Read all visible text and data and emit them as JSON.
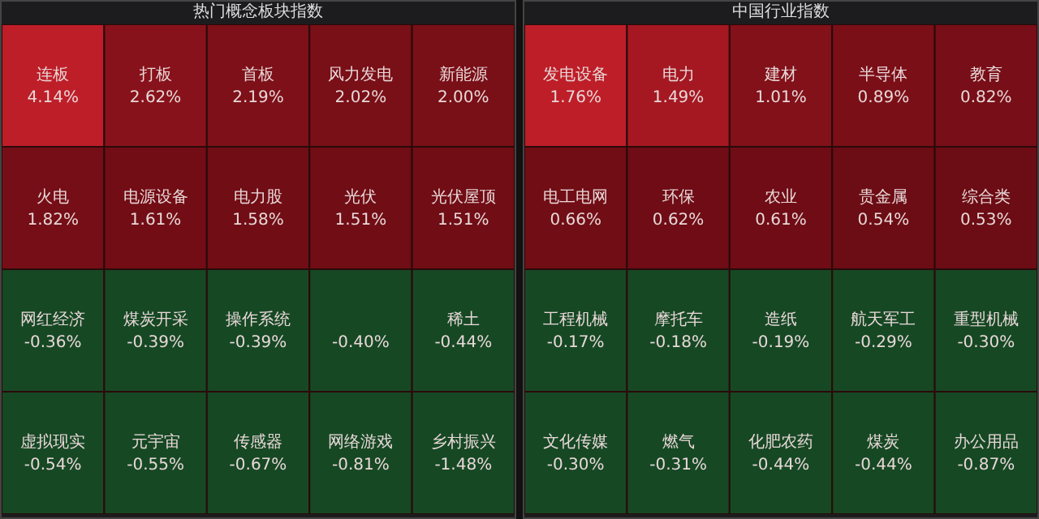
{
  "chart_data": [
    {
      "type": "other",
      "title": "热门概念板块指数",
      "categories": [
        "连板",
        "打板",
        "首板",
        "风力发电",
        "新能源",
        "火电",
        "电源设备",
        "电力股",
        "光伏",
        "光伏屋顶",
        "网红经济",
        "煤炭开采",
        "操作系统",
        null,
        "稀土",
        "虚拟现实",
        "元宇宙",
        "传感器",
        "网络游戏",
        "乡村振兴"
      ],
      "values": [
        4.14,
        2.62,
        2.19,
        2.02,
        2.0,
        1.82,
        1.61,
        1.58,
        1.51,
        1.51,
        -0.36,
        -0.39,
        -0.39,
        -0.4,
        -0.44,
        -0.54,
        -0.55,
        -0.67,
        -0.81,
        -1.48
      ],
      "value_labels": [
        "4.14%",
        "2.62%",
        "2.19%",
        "2.02%",
        "2.00%",
        "1.82%",
        "1.61%",
        "1.58%",
        "1.51%",
        "1.51%",
        "-0.36%",
        "-0.39%",
        "-0.39%",
        "-0.40%",
        "-0.44%",
        "-0.54%",
        "-0.55%",
        "-0.67%",
        "-0.81%",
        "-1.48%"
      ]
    },
    {
      "type": "other",
      "title": "中国行业指数",
      "categories": [
        "发电设备",
        "电力",
        "建材",
        "半导体",
        "教育",
        "电工电网",
        "环保",
        "农业",
        "贵金属",
        "综合类",
        "工程机械",
        "摩托车",
        "造纸",
        "航天军工",
        "重型机械",
        "文化传媒",
        "燃气",
        "化肥农药",
        "煤炭",
        "办公用品"
      ],
      "values": [
        1.76,
        1.49,
        1.01,
        0.89,
        0.82,
        0.66,
        0.62,
        0.61,
        0.54,
        0.53,
        -0.17,
        -0.18,
        -0.19,
        -0.29,
        -0.3,
        -0.3,
        -0.31,
        -0.44,
        -0.44,
        -0.87
      ],
      "value_labels": [
        "1.76%",
        "1.49%",
        "1.01%",
        "0.89%",
        "0.82%",
        "0.66%",
        "0.62%",
        "0.61%",
        "0.54%",
        "0.53%",
        "-0.17%",
        "-0.18%",
        "-0.19%",
        "-0.29%",
        "-0.30%",
        "-0.30%",
        "-0.31%",
        "-0.44%",
        "-0.44%",
        "-0.87%"
      ]
    }
  ]
}
